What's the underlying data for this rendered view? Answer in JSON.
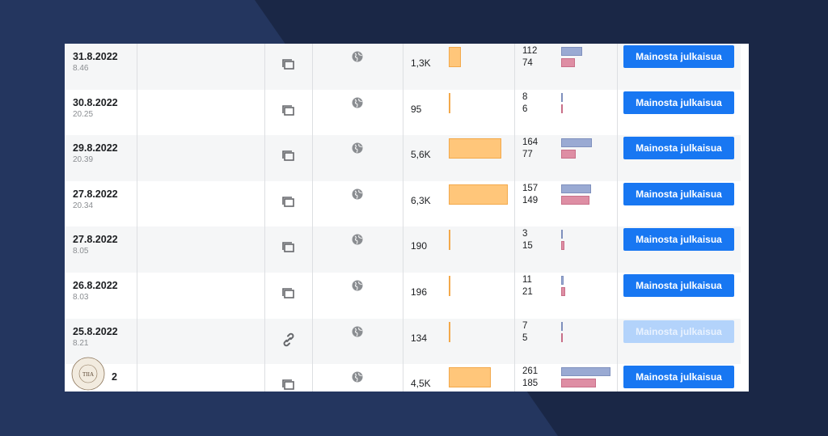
{
  "colors": {
    "background": "#1a2746",
    "accent_shape": "#24365f",
    "button": "#1877f2",
    "button_disabled": "#b3d3fb",
    "reach_bar": "#ffc67a",
    "engagement_primary": "#9aaad3",
    "engagement_secondary": "#de8ea4"
  },
  "table": {
    "rows": [
      {
        "date": "31.8.2022",
        "time": "8.46",
        "type_icon": "album-icon",
        "audience_icon": "globe-icon",
        "reach": "1,3K",
        "reach_value": 1300,
        "eng1": "112",
        "eng2": "74",
        "button": "Mainosta julkaisua",
        "button_enabled": true
      },
      {
        "date": "30.8.2022",
        "time": "20.25",
        "type_icon": "album-icon",
        "audience_icon": "globe-icon",
        "reach": "95",
        "reach_value": 95,
        "eng1": "8",
        "eng2": "6",
        "button": "Mainosta julkaisua",
        "button_enabled": true
      },
      {
        "date": "29.8.2022",
        "time": "20.39",
        "type_icon": "album-icon",
        "audience_icon": "globe-icon",
        "reach": "5,6K",
        "reach_value": 5600,
        "eng1": "164",
        "eng2": "77",
        "button": "Mainosta julkaisua",
        "button_enabled": true
      },
      {
        "date": "27.8.2022",
        "time": "20.34",
        "type_icon": "album-icon",
        "audience_icon": "globe-icon",
        "reach": "6,3K",
        "reach_value": 6300,
        "eng1": "157",
        "eng2": "149",
        "button": "Mainosta julkaisua",
        "button_enabled": true
      },
      {
        "date": "27.8.2022",
        "time": "8.05",
        "type_icon": "album-icon",
        "audience_icon": "globe-icon",
        "reach": "190",
        "reach_value": 190,
        "eng1": "3",
        "eng2": "15",
        "button": "Mainosta julkaisua",
        "button_enabled": true
      },
      {
        "date": "26.8.2022",
        "time": "8.03",
        "type_icon": "album-icon",
        "audience_icon": "globe-icon",
        "reach": "196",
        "reach_value": 196,
        "eng1": "11",
        "eng2": "21",
        "button": "Mainosta julkaisua",
        "button_enabled": true
      },
      {
        "date": "25.8.2022",
        "time": "8.21",
        "type_icon": "link-icon",
        "audience_icon": "globe-icon",
        "reach": "134",
        "reach_value": 134,
        "eng1": "7",
        "eng2": "5",
        "button": "Mainosta julkaisua",
        "button_enabled": false
      },
      {
        "date": "2",
        "time": "",
        "type_icon": "album-icon",
        "audience_icon": "globe-icon",
        "reach": "4,5K",
        "reach_value": 4500,
        "eng1": "261",
        "eng2": "185",
        "button": "Mainosta julkaisua",
        "button_enabled": true
      }
    ]
  },
  "logo": {
    "ring_text_top": "BLOGIVALMENTAJA",
    "ring_text_bottom": "TIIA KONTTINEN",
    "monogram": "TIIA"
  }
}
